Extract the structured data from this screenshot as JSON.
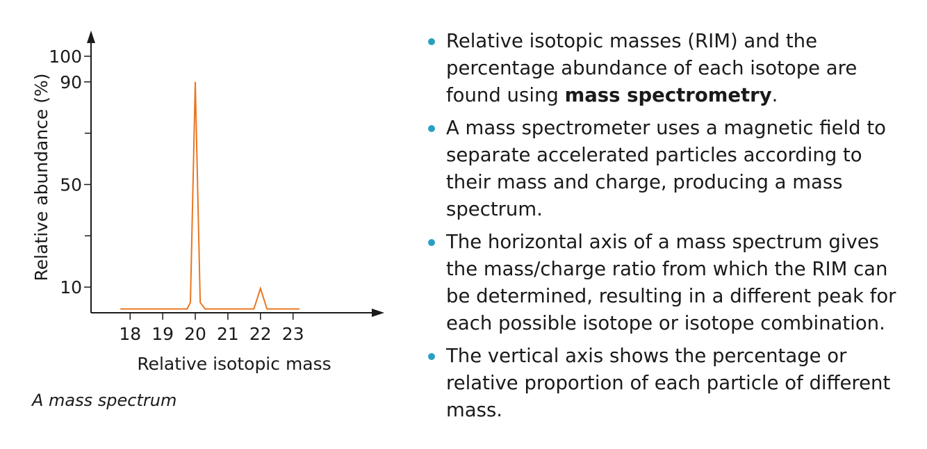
{
  "chart_data": {
    "type": "line",
    "xlabel": "Relative isotopic mass",
    "ylabel": "Relative abundance (%)",
    "x_ticks": [
      "18",
      "19",
      "20",
      "21",
      "22",
      "23"
    ],
    "x_tick_values": [
      18,
      19,
      20,
      21,
      22,
      23
    ],
    "y_ticks": [
      "10",
      "50",
      "90",
      "100"
    ],
    "y_tick_values": [
      10,
      50,
      90,
      100
    ],
    "xlim": [
      16.8,
      25.8
    ],
    "ylim": [
      0,
      110
    ],
    "series": [
      {
        "color": "#e87722",
        "x": [
          17.7,
          19.75,
          19.85,
          20.0,
          20.15,
          20.3,
          21.8,
          22.0,
          22.2,
          23.2
        ],
        "y": [
          1.5,
          1.5,
          4,
          90,
          4,
          1.5,
          1.5,
          9.5,
          1.5,
          1.5
        ]
      }
    ],
    "grid": false,
    "legend": "none"
  },
  "caption": "A mass spectrum",
  "bullets": [
    {
      "parts": [
        {
          "text": "Relative isotopic masses (RIM) and the percentage abundance of each isotope are found using "
        },
        {
          "text": "mass spectrometry",
          "bold": true
        },
        {
          "text": "."
        }
      ]
    },
    {
      "parts": [
        {
          "text": "A mass spectrometer uses a magnetic field to separate accelerated particles according to their mass and charge, producing a mass spectrum."
        }
      ]
    },
    {
      "parts": [
        {
          "text": "The horizontal axis of a mass spectrum gives the mass/charge ratio from which the RIM can be determined, resulting in a different peak for each possible isotope or isotope combination."
        }
      ]
    },
    {
      "parts": [
        {
          "text": "The vertical axis shows the percentage or relative proportion of each particle of different mass."
        }
      ]
    }
  ],
  "colors": {
    "bullet": "#2a9fc4",
    "line": "#e87722",
    "axis": "#1a1a1a"
  }
}
